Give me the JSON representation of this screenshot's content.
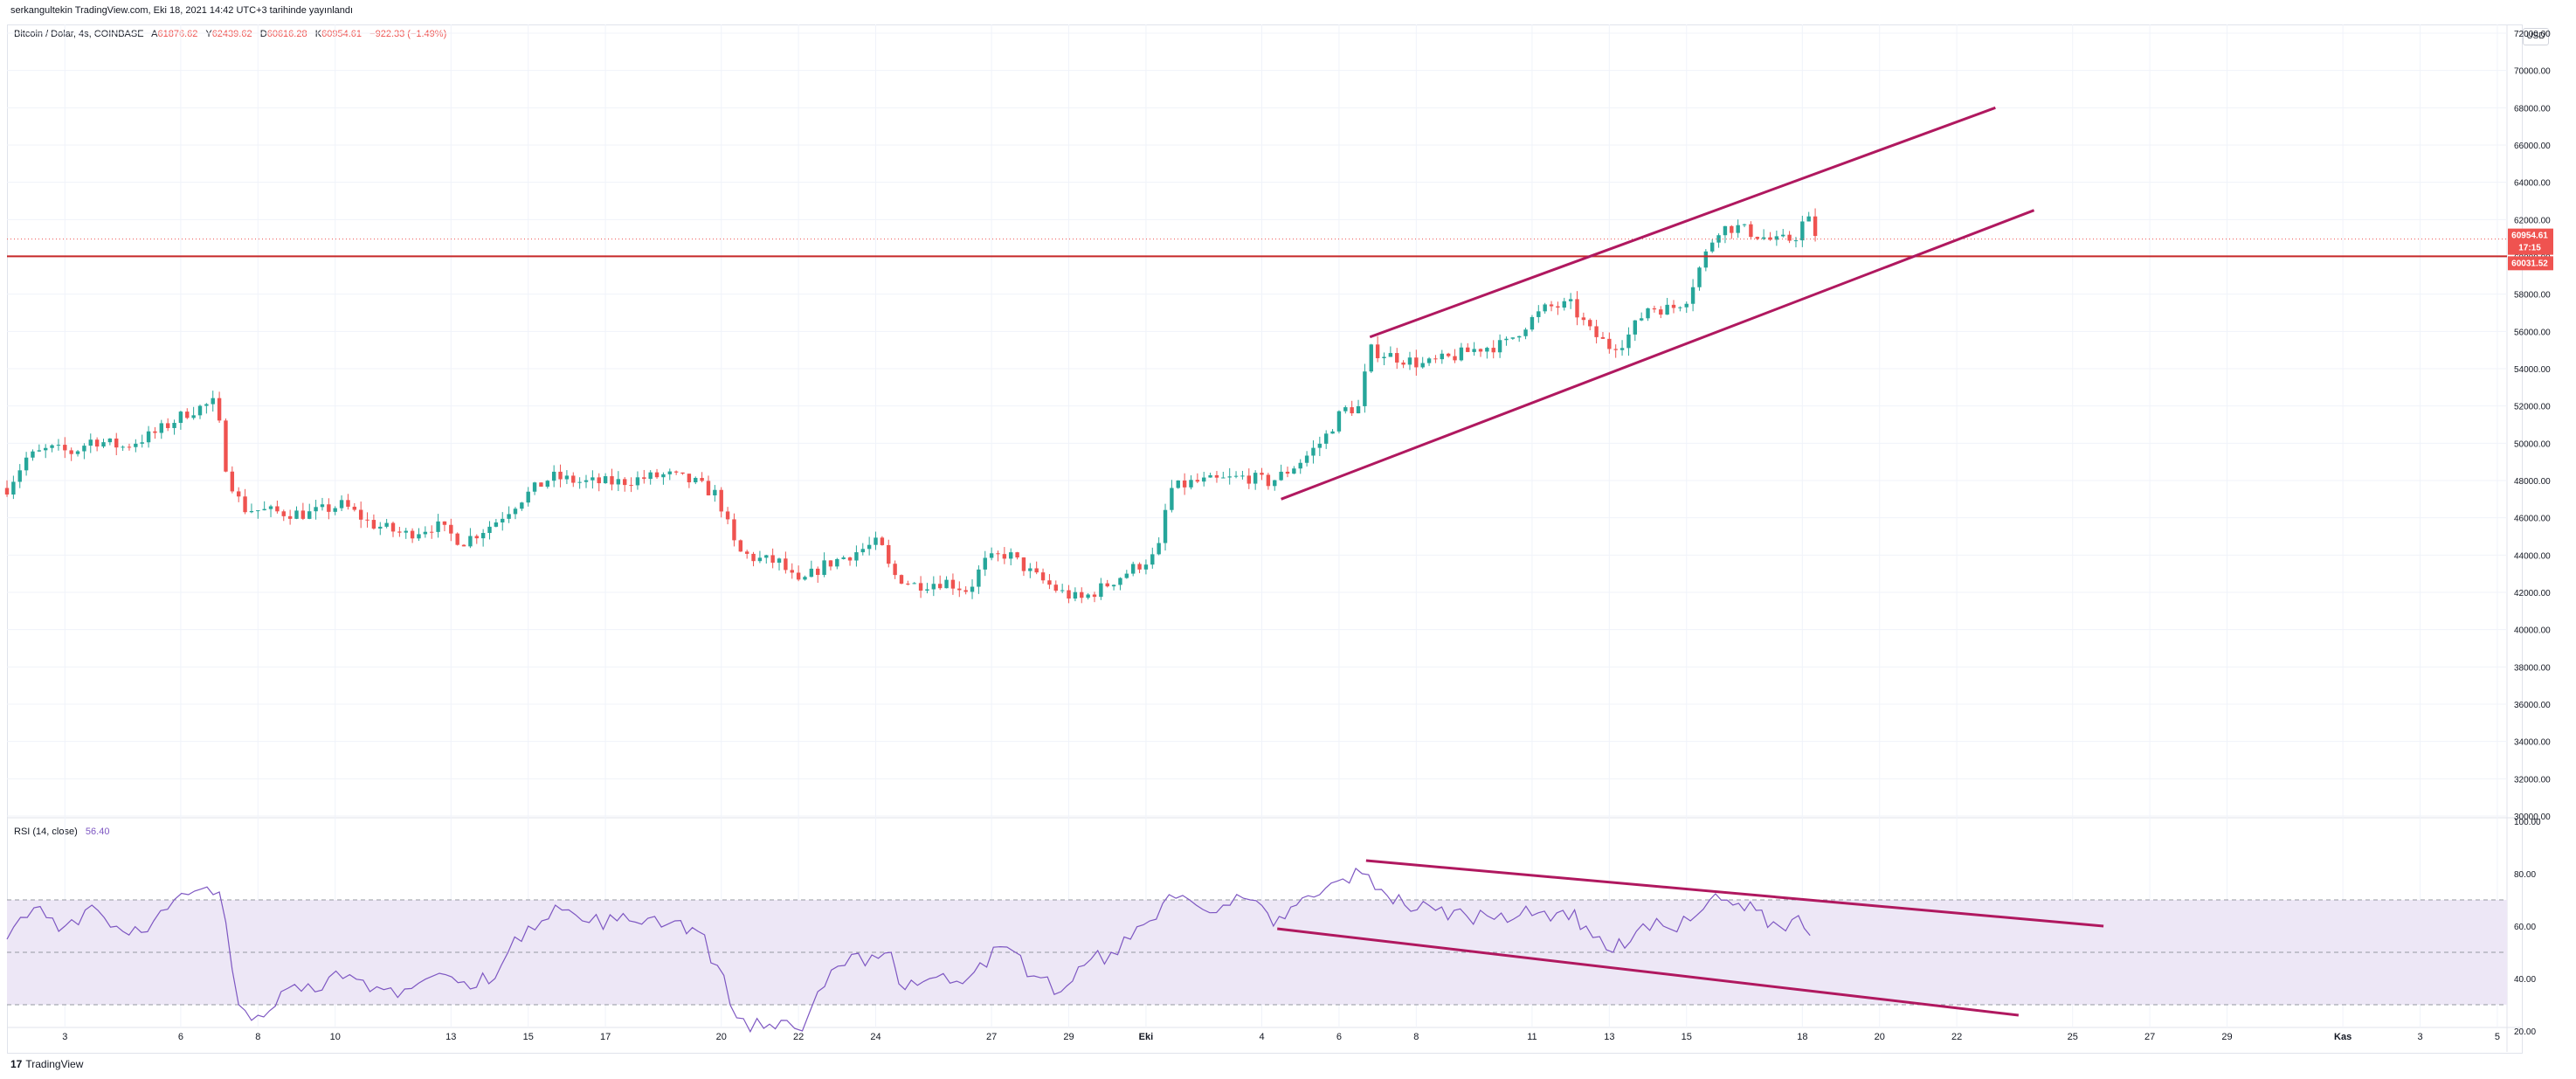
{
  "header": {
    "author": "serkangultekin",
    "published_text": "TradingView.com, Eki 18, 2021 14:42 UTC+3 tarihinde yayınlandı"
  },
  "symbol": {
    "name": "Bitcoin / Dolar, 4s, COINBASE",
    "open_label": "A",
    "open": "61876.62",
    "high_label": "Y",
    "high": "62439.62",
    "low_label": "D",
    "low": "60616.28",
    "close_label": "K",
    "close": "60954.61",
    "change": "−922.33 (−1.49%)"
  },
  "currency": "USD",
  "price_badges": {
    "last_price": "60954.61",
    "countdown": "17:15",
    "level_price": "60031.52"
  },
  "colors": {
    "up": "#26a69a",
    "down": "#ef5350",
    "trendline": "#b0185f",
    "horizontal_level": "#c62828",
    "rsi_line": "#7e57c2",
    "rsi_band": "#ede7f6"
  },
  "rsi_legend": {
    "label": "RSI (14, close)",
    "value": "56.40"
  },
  "footer": {
    "logo_mark": "17",
    "logo_text": "TradingView"
  },
  "chart_data": [
    {
      "type": "candlestick",
      "title": "Bitcoin / Dolar, 4s, COINBASE",
      "ylim": [
        30000,
        72000
      ],
      "y_ticks": [
        "72000.00",
        "70000.00",
        "68000.00",
        "66000.00",
        "64000.00",
        "62000.00",
        "60000.00",
        "58000.00",
        "56000.00",
        "54000.00",
        "52000.00",
        "50000.00",
        "48000.00",
        "46000.00",
        "44000.00",
        "42000.00",
        "40000.00",
        "38000.00",
        "36000.00",
        "34000.00",
        "32000.00",
        "30000.00"
      ],
      "x_ticks": [
        {
          "label": "3",
          "day": 3
        },
        {
          "label": "6",
          "day": 6
        },
        {
          "label": "8",
          "day": 8
        },
        {
          "label": "10",
          "day": 10
        },
        {
          "label": "13",
          "day": 13
        },
        {
          "label": "15",
          "day": 15
        },
        {
          "label": "17",
          "day": 17
        },
        {
          "label": "20",
          "day": 20
        },
        {
          "label": "22",
          "day": 22
        },
        {
          "label": "24",
          "day": 24
        },
        {
          "label": "27",
          "day": 27
        },
        {
          "label": "29",
          "day": 29
        },
        {
          "label": "Eki",
          "day": 31
        },
        {
          "label": "4",
          "day": 34
        },
        {
          "label": "6",
          "day": 36
        },
        {
          "label": "8",
          "day": 38
        },
        {
          "label": "11",
          "day": 41
        },
        {
          "label": "13",
          "day": 43
        },
        {
          "label": "15",
          "day": 45
        },
        {
          "label": "18",
          "day": 48
        },
        {
          "label": "20",
          "day": 50
        },
        {
          "label": "22",
          "day": 52
        },
        {
          "label": "25",
          "day": 55
        },
        {
          "label": "27",
          "day": 57
        },
        {
          "label": "29",
          "day": 59
        },
        {
          "label": "Kas",
          "day": 62
        },
        {
          "label": "3",
          "day": 64
        },
        {
          "label": "5",
          "day": 66
        }
      ],
      "x_domain_days": [
        1.5,
        66.25
      ],
      "price_path": [
        [
          1.5,
          47600
        ],
        [
          2.0,
          49200
        ],
        [
          2.6,
          49700
        ],
        [
          3.2,
          49500
        ],
        [
          3.7,
          50200
        ],
        [
          4.5,
          49800
        ],
        [
          5.3,
          50500
        ],
        [
          6.2,
          51700
        ],
        [
          6.9,
          52200
        ],
        [
          7.2,
          48400
        ],
        [
          7.6,
          46500
        ],
        [
          8.5,
          46300
        ],
        [
          9.3,
          46200
        ],
        [
          10.2,
          46700
        ],
        [
          10.9,
          45700
        ],
        [
          11.8,
          45100
        ],
        [
          12.6,
          45600
        ],
        [
          13.3,
          44700
        ],
        [
          14.1,
          45700
        ],
        [
          14.8,
          47000
        ],
        [
          15.6,
          48200
        ],
        [
          16.4,
          47900
        ],
        [
          17.3,
          47900
        ],
        [
          17.9,
          48100
        ],
        [
          18.6,
          48300
        ],
        [
          19.3,
          47900
        ],
        [
          19.9,
          47200
        ],
        [
          20.4,
          44200
        ],
        [
          20.9,
          43800
        ],
        [
          21.5,
          43600
        ],
        [
          22.0,
          42400
        ],
        [
          22.6,
          43400
        ],
        [
          23.3,
          44000
        ],
        [
          24.1,
          44700
        ],
        [
          24.4,
          43000
        ],
        [
          25.0,
          42400
        ],
        [
          25.8,
          42600
        ],
        [
          26.4,
          42100
        ],
        [
          26.8,
          43600
        ],
        [
          27.4,
          44100
        ],
        [
          28.1,
          42900
        ],
        [
          28.8,
          42000
        ],
        [
          29.3,
          41600
        ],
        [
          29.9,
          42300
        ],
        [
          30.6,
          43200
        ],
        [
          31.0,
          43700
        ],
        [
          31.3,
          44000
        ],
        [
          31.6,
          47500
        ],
        [
          32.2,
          47900
        ],
        [
          32.9,
          48000
        ],
        [
          33.6,
          48200
        ],
        [
          34.2,
          47900
        ],
        [
          34.6,
          48400
        ],
        [
          35.1,
          49200
        ],
        [
          35.6,
          50200
        ],
        [
          36.1,
          51800
        ],
        [
          36.5,
          51900
        ],
        [
          36.8,
          55000
        ],
        [
          37.5,
          54600
        ],
        [
          38.2,
          54200
        ],
        [
          38.9,
          54600
        ],
        [
          39.6,
          55100
        ],
        [
          40.3,
          55300
        ],
        [
          40.9,
          56500
        ],
        [
          41.4,
          57300
        ],
        [
          42.0,
          57400
        ],
        [
          42.5,
          56000
        ],
        [
          43.0,
          55200
        ],
        [
          43.4,
          55500
        ],
        [
          44.0,
          57300
        ],
        [
          44.6,
          57200
        ],
        [
          45.0,
          57800
        ],
        [
          45.4,
          59700
        ],
        [
          45.8,
          61500
        ],
        [
          46.3,
          61600
        ],
        [
          46.8,
          61200
        ],
        [
          47.3,
          60800
        ],
        [
          47.8,
          61000
        ],
        [
          48.1,
          62200
        ],
        [
          48.4,
          60955
        ]
      ],
      "horizontal_level": 60031.52,
      "trendlines": [
        {
          "from": [
            36.8,
            55700
          ],
          "to": [
            53.0,
            68000
          ]
        },
        {
          "from": [
            34.5,
            47000
          ],
          "to": [
            54.0,
            62500
          ]
        }
      ]
    },
    {
      "type": "line",
      "title": "RSI (14, close)",
      "ylim": [
        15,
        100
      ],
      "y_ticks": [
        "100.00",
        "80.00",
        "60.00",
        "40.00",
        "20.00"
      ],
      "bands": {
        "upper": 70,
        "middle": 50,
        "lower": 30
      },
      "rsi_path": [
        [
          1.5,
          55
        ],
        [
          2.2,
          67
        ],
        [
          3.0,
          60
        ],
        [
          3.7,
          68
        ],
        [
          4.5,
          58
        ],
        [
          5.3,
          62
        ],
        [
          6.2,
          72
        ],
        [
          7.0,
          73
        ],
        [
          7.5,
          30
        ],
        [
          8.0,
          26
        ],
        [
          8.6,
          35
        ],
        [
          9.3,
          38
        ],
        [
          10.2,
          40
        ],
        [
          10.9,
          35
        ],
        [
          11.8,
          36
        ],
        [
          12.7,
          42
        ],
        [
          13.5,
          36
        ],
        [
          14.3,
          45
        ],
        [
          15.0,
          60
        ],
        [
          15.7,
          68
        ],
        [
          16.4,
          62
        ],
        [
          17.3,
          62
        ],
        [
          18.1,
          63
        ],
        [
          18.8,
          62
        ],
        [
          19.4,
          58
        ],
        [
          19.9,
          45
        ],
        [
          20.4,
          25
        ],
        [
          21.1,
          21
        ],
        [
          21.7,
          24
        ],
        [
          22.1,
          20
        ],
        [
          22.5,
          35
        ],
        [
          23.2,
          45
        ],
        [
          23.9,
          49
        ],
        [
          24.4,
          50
        ],
        [
          24.6,
          38
        ],
        [
          25.4,
          40
        ],
        [
          26.1,
          39
        ],
        [
          26.7,
          46
        ],
        [
          27.4,
          52
        ],
        [
          28.1,
          41
        ],
        [
          28.8,
          35
        ],
        [
          29.4,
          45
        ],
        [
          30.1,
          50
        ],
        [
          30.6,
          55
        ],
        [
          31.1,
          62
        ],
        [
          31.6,
          72
        ],
        [
          32.3,
          68
        ],
        [
          33.0,
          68
        ],
        [
          33.7,
          70
        ],
        [
          34.3,
          60
        ],
        [
          34.9,
          68
        ],
        [
          35.5,
          72
        ],
        [
          36.1,
          78
        ],
        [
          36.6,
          80
        ],
        [
          37.1,
          74
        ],
        [
          37.7,
          68
        ],
        [
          38.5,
          66
        ],
        [
          39.3,
          64
        ],
        [
          40.2,
          65
        ],
        [
          41.0,
          64
        ],
        [
          41.8,
          66
        ],
        [
          42.4,
          60
        ],
        [
          43.1,
          50
        ],
        [
          43.7,
          58
        ],
        [
          44.4,
          60
        ],
        [
          45.1,
          62
        ],
        [
          45.6,
          70
        ],
        [
          46.2,
          68
        ],
        [
          46.8,
          66
        ],
        [
          47.4,
          60
        ],
        [
          47.9,
          64
        ],
        [
          48.2,
          56.4
        ]
      ],
      "trendlines": [
        {
          "from": [
            36.7,
            85
          ],
          "to": [
            55.8,
            60
          ]
        },
        {
          "from": [
            34.4,
            59
          ],
          "to": [
            53.6,
            26
          ]
        }
      ]
    }
  ]
}
